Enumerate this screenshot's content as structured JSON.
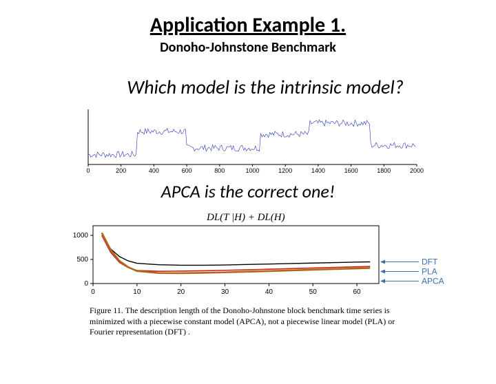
{
  "title": "Application Example 1.",
  "subtitle": "Donoho-Johnstone Benchmark",
  "question": "Which model is the intrinsic model?",
  "answer": "APCA is the correct one!",
  "signal_chart": {
    "type": "line",
    "xlim": [
      0,
      2000
    ],
    "xticks": [
      0,
      200,
      400,
      600,
      800,
      1000,
      1200,
      1400,
      1600,
      1800,
      2000
    ],
    "tick_fontsize": 9,
    "line_color": "#2030c0",
    "line_width": 0.6,
    "background_color": "#ffffff",
    "axis_color": "#000000",
    "levels_x": [
      0,
      250,
      300,
      450,
      600,
      820,
      1050,
      1200,
      1350,
      1600,
      1720,
      2000
    ],
    "levels_y": [
      18,
      18,
      60,
      60,
      30,
      30,
      55,
      55,
      75,
      75,
      35,
      35
    ],
    "noise_amp": 6
  },
  "dl_chart": {
    "type": "line",
    "formula": "DL(T |H) + DL(H)",
    "xlim": [
      0,
      65
    ],
    "xticks": [
      0,
      10,
      20,
      30,
      40,
      50,
      60
    ],
    "ylim": [
      0,
      1200
    ],
    "yticks": [
      0,
      500,
      1000
    ],
    "tick_fontsize": 10,
    "background_color": "#ffffff",
    "axis_color": "#000000",
    "grid_color": "#e0e0e0",
    "series": [
      {
        "name": "DFT",
        "color": "#000000",
        "width": 1.4,
        "label_color": "#3a6fb0",
        "x": [
          2,
          4,
          6,
          8,
          10,
          15,
          20,
          25,
          30,
          35,
          40,
          45,
          50,
          55,
          60,
          63
        ],
        "y": [
          1050,
          720,
          560,
          470,
          420,
          390,
          380,
          380,
          385,
          395,
          405,
          415,
          425,
          435,
          445,
          450
        ]
      },
      {
        "name": "PLA",
        "color": "#d02020",
        "width": 1.6,
        "label_color": "#3a6fb0",
        "x": [
          2,
          4,
          6,
          8,
          10,
          15,
          20,
          25,
          30,
          35,
          40,
          45,
          50,
          55,
          60,
          63
        ],
        "y": [
          1000,
          650,
          440,
          330,
          270,
          255,
          258,
          265,
          275,
          285,
          298,
          310,
          322,
          335,
          348,
          355
        ]
      },
      {
        "name": "APCA",
        "color": "#b06818",
        "width": 2.6,
        "label_color": "#3a6fb0",
        "x": [
          2,
          4,
          6,
          8,
          10,
          15,
          20,
          25,
          30,
          35,
          40,
          45,
          50,
          55,
          60,
          63
        ],
        "y": [
          1050,
          700,
          470,
          340,
          260,
          218,
          215,
          222,
          232,
          245,
          258,
          272,
          286,
          300,
          314,
          322
        ]
      }
    ],
    "legend_arrow_color": "#3a6fb0"
  },
  "caption": "Figure 11. The description length of the Donoho-Johnstone block benchmark time series is minimized with a piecewise constant model (APCA),  not a piecewise linear model (PLA) or Fourier representation (DFT) ."
}
